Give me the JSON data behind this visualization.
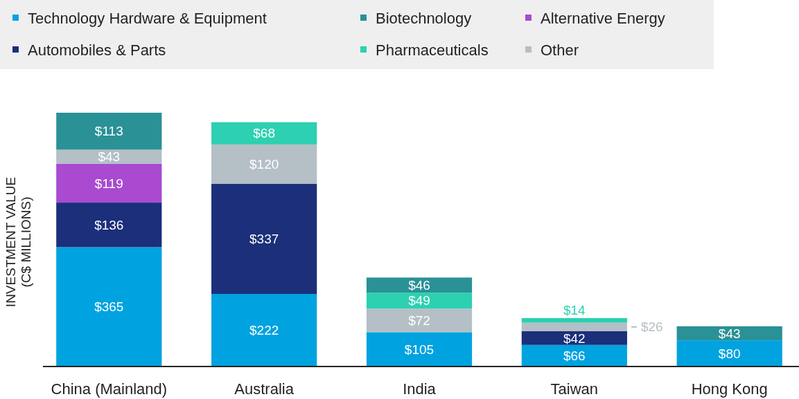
{
  "chart_data": {
    "type": "bar",
    "stacked": true,
    "ylabel": "INVESTMENT VALUE\n(C$ MILLIONS)",
    "legend": "top",
    "categories": [
      "China (Mainland)",
      "Australia",
      "India",
      "Taiwan",
      "Hong Kong"
    ],
    "series": [
      {
        "name": "Technology Hardware & Equipment",
        "color": "#00a3e0",
        "values": [
          365,
          222,
          105,
          66,
          80
        ],
        "value_labels": [
          "$365",
          "$222",
          "$105",
          "$66",
          "$80"
        ]
      },
      {
        "name": "Automobiles & Parts",
        "color": "#1b2f7a",
        "values": [
          136,
          337,
          null,
          42,
          null
        ],
        "value_labels": [
          "$136",
          "$337",
          null,
          "$42",
          null
        ]
      },
      {
        "name": "Alternative Energy",
        "color": "#a94ad0",
        "values": [
          119,
          null,
          null,
          null,
          null
        ],
        "value_labels": [
          "$119",
          null,
          null,
          null,
          null
        ]
      },
      {
        "name": "Other",
        "color": "#b4bfc6",
        "values": [
          43,
          120,
          72,
          26,
          null
        ],
        "value_labels": [
          "$43",
          "$120",
          "$72",
          "$26",
          null
        ]
      },
      {
        "name": "Pharmaceuticals",
        "color": "#2dd0b0",
        "values": [
          null,
          68,
          49,
          14,
          null
        ],
        "value_labels": [
          null,
          "$68",
          "$49",
          "$14",
          null
        ]
      },
      {
        "name": "Biotechnology",
        "color": "#2a9196",
        "values": [
          113,
          null,
          46,
          null,
          43
        ],
        "value_labels": [
          "$113",
          null,
          "$46",
          null,
          "$43"
        ]
      }
    ]
  }
}
